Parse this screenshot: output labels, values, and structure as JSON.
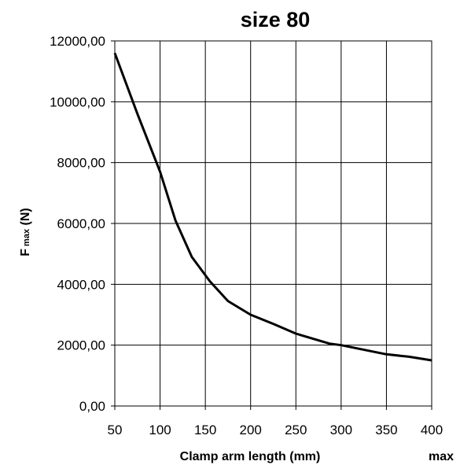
{
  "chart_data": {
    "type": "line",
    "title": "size 80",
    "xlabel": "Clamp arm length (mm)",
    "ylabel_main": "F",
    "ylabel_sub": "max",
    "ylabel_unit": " (N)",
    "corner_label": "max",
    "xlim": [
      50,
      400
    ],
    "ylim": [
      0,
      12000
    ],
    "grid": true,
    "x_ticks": [
      50,
      100,
      150,
      200,
      250,
      300,
      350,
      400
    ],
    "y_ticks": [
      0,
      2000,
      4000,
      6000,
      8000,
      10000,
      12000
    ],
    "x_tick_labels": [
      "50",
      "100",
      "150",
      "200",
      "250",
      "300",
      "350",
      "400"
    ],
    "y_tick_labels": [
      "0,00",
      "2000,00",
      "4000,00",
      "6000,00",
      "8000,00",
      "10000,00",
      "12000,00"
    ],
    "series": [
      {
        "color": "#000000",
        "x": [
          50,
          75,
          100,
          117,
          135,
          155,
          175,
          200,
          225,
          250,
          287,
          300,
          350,
          375,
          400
        ],
        "y": [
          11600,
          9600,
          7700,
          6100,
          4900,
          4100,
          3450,
          3000,
          2700,
          2380,
          2050,
          2000,
          1700,
          1620,
          1500
        ]
      }
    ]
  }
}
